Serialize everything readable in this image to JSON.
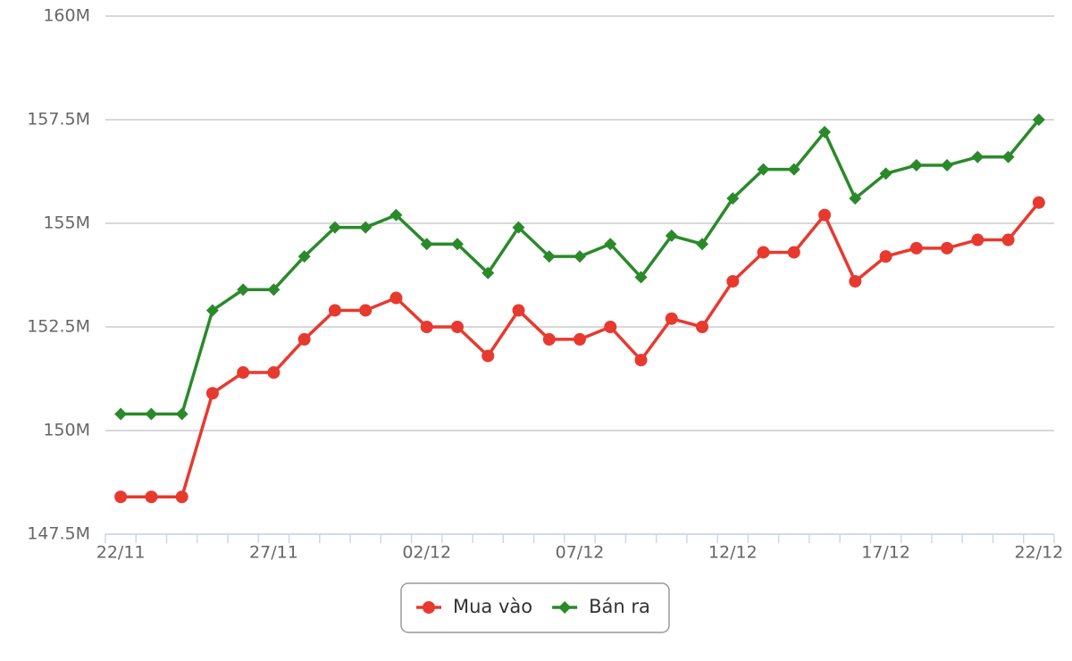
{
  "chart_data": {
    "type": "line",
    "categories": [
      "22/11",
      null,
      null,
      null,
      null,
      "27/11",
      null,
      null,
      null,
      null,
      "02/12",
      null,
      null,
      null,
      null,
      "07/12",
      null,
      null,
      null,
      null,
      "12/12",
      null,
      null,
      null,
      null,
      "17/12",
      null,
      null,
      null,
      null,
      "22/12"
    ],
    "series": [
      {
        "name": "Mua vào",
        "color": "#e8392f",
        "marker": "circle",
        "values": [
          148400000,
          148400000,
          148400000,
          150900000,
          151400000,
          151400000,
          152200000,
          152900000,
          152900000,
          153200000,
          152500000,
          152500000,
          151800000,
          152900000,
          152200000,
          152200000,
          152500000,
          151700000,
          152700000,
          152500000,
          153600000,
          154300000,
          154300000,
          155200000,
          153600000,
          154200000,
          154400000,
          154400000,
          154600000,
          154600000,
          155500000
        ]
      },
      {
        "name": "Bán ra",
        "color": "#2a8a2a",
        "marker": "diamond",
        "values": [
          150400000,
          150400000,
          150400000,
          152900000,
          153400000,
          153400000,
          154200000,
          154900000,
          154900000,
          155200000,
          154500000,
          154500000,
          153800000,
          154900000,
          154200000,
          154200000,
          154500000,
          153700000,
          154700000,
          154500000,
          155600000,
          156300000,
          156300000,
          157200000,
          155600000,
          156200000,
          156400000,
          156400000,
          156600000,
          156600000,
          157500000
        ]
      }
    ],
    "ylim": [
      147500000,
      160000000
    ],
    "yticks": [
      {
        "value": 147500000,
        "label": "147.5M"
      },
      {
        "value": 150000000,
        "label": "150M"
      },
      {
        "value": 152500000,
        "label": "152.5M"
      },
      {
        "value": 155000000,
        "label": "155M"
      },
      {
        "value": 157500000,
        "label": "157.5M"
      },
      {
        "value": 160000000,
        "label": "160M"
      }
    ],
    "grid": true,
    "legend": "bottom"
  }
}
